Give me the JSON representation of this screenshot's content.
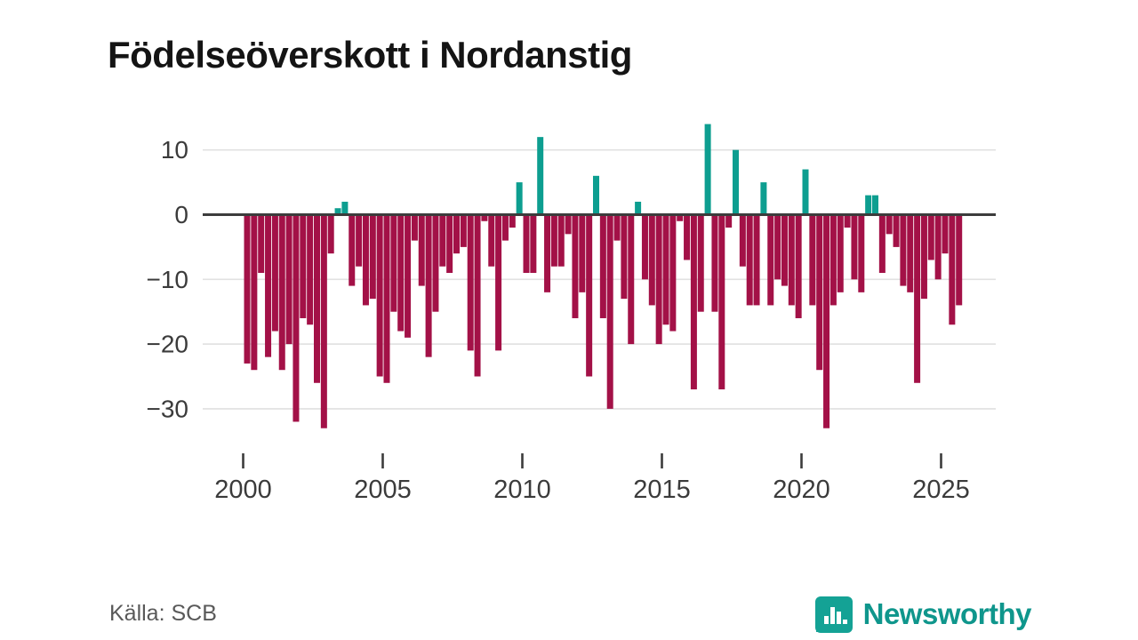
{
  "title": "Födelseöverskott i Nordanstig",
  "source": "Källa: SCB",
  "brand": {
    "name": "Newsworthy",
    "color": "#0f968c",
    "icon": "bar-chart-bubble-icon"
  },
  "colors": {
    "positive": "#0d9e90",
    "negative": "#a31147",
    "zero_line": "#3c3c3c",
    "gridline": "#e1e1e1",
    "axis_text": "#3b3b3b"
  },
  "chart_data": {
    "type": "bar",
    "title": "Födelseöverskott i Nordanstig",
    "x_start": "2000-Q1",
    "x_end": "2025-Q3",
    "periods_per_year": 4,
    "start_year": 2000,
    "x_tick_years": [
      2000,
      2005,
      2010,
      2015,
      2020,
      2025
    ],
    "x_tick_labels": [
      "2000",
      "2005",
      "2010",
      "2015",
      "2020",
      "2025"
    ],
    "y_ticks": [
      10,
      0,
      -10,
      -20,
      -30
    ],
    "y_tick_labels": [
      "10",
      "0",
      "−10",
      "−20",
      "−30"
    ],
    "ylim": [
      -35,
      15
    ],
    "grid": "horizontal",
    "legend": "none",
    "values": [
      -23,
      -24,
      -9,
      -22,
      -18,
      -24,
      -20,
      -32,
      -16,
      -17,
      -26,
      -33,
      -6,
      1,
      2,
      -11,
      -8,
      -14,
      -13,
      -25,
      -26,
      -15,
      -18,
      -19,
      -4,
      -11,
      -22,
      -15,
      -8,
      -9,
      -6,
      -5,
      -21,
      -25,
      -1,
      -8,
      -21,
      -4,
      -2,
      5,
      -9,
      -9,
      12,
      -12,
      -8,
      -8,
      -3,
      -16,
      -12,
      -25,
      6,
      -16,
      -30,
      -4,
      -13,
      -20,
      2,
      -10,
      -14,
      -20,
      -17,
      -18,
      -1,
      -7,
      -27,
      -15,
      14,
      -15,
      -27,
      -2,
      10,
      -8,
      -14,
      -14,
      5,
      -14,
      -10,
      -11,
      -14,
      -16,
      7,
      -14,
      -24,
      -33,
      -14,
      -12,
      -2,
      -10,
      -12,
      3,
      3,
      -9,
      -3,
      -5,
      -11,
      -12,
      -26,
      -13,
      -7,
      -10,
      -6,
      -17,
      -14
    ]
  }
}
